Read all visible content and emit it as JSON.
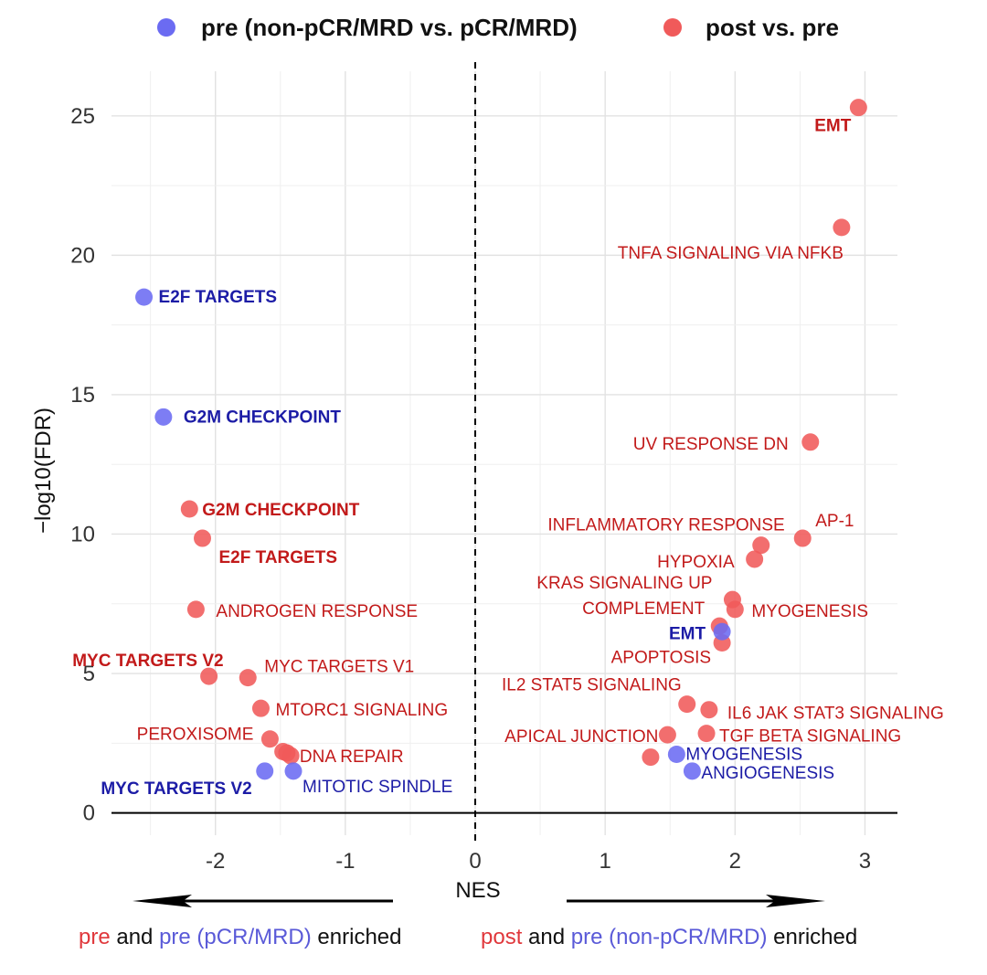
{
  "chart_data": {
    "type": "scatter",
    "xlabel": "NES",
    "ylabel": "−log10(FDR)",
    "xlim": [
      -2.8,
      3.25
    ],
    "ylim": [
      -0.8,
      26.6
    ],
    "x_ticks": [
      -2,
      -1,
      0,
      1,
      2,
      3
    ],
    "y_ticks": [
      0,
      5,
      10,
      15,
      20,
      25
    ],
    "grid": true,
    "legend_position": "top",
    "legend": [
      {
        "name": "pre (non-pCR/MRD vs. pCR/MRD)",
        "color": "#6b6bf2"
      },
      {
        "name": "post vs. pre",
        "color": "#f05a5a"
      }
    ],
    "series": [
      {
        "name": "pre (non-pCR/MRD vs. pCR/MRD)",
        "color": "#6b6bf2",
        "label_color": "#1c1ca6",
        "points": [
          {
            "x": -2.55,
            "y": 18.5,
            "label": "E2F TARGETS",
            "bold": true
          },
          {
            "x": -2.4,
            "y": 14.2,
            "label": "G2M CHECKPOINT",
            "bold": true
          },
          {
            "x": -1.62,
            "y": 1.5,
            "label": "MYC TARGETS V2",
            "bold": true
          },
          {
            "x": -1.4,
            "y": 1.5,
            "label": "MITOTIC SPINDLE",
            "bold": false
          },
          {
            "x": 1.9,
            "y": 6.5,
            "label": "EMT",
            "bold": true
          },
          {
            "x": 1.55,
            "y": 2.1,
            "label": "MYOGENESIS",
            "bold": false
          },
          {
            "x": 1.67,
            "y": 1.5,
            "label": "ANGIOGENESIS",
            "bold": false
          }
        ]
      },
      {
        "name": "post vs. pre",
        "color": "#f05a5a",
        "label_color": "#c21a1a",
        "points": [
          {
            "x": 2.95,
            "y": 25.3,
            "label": "EMT",
            "bold": true
          },
          {
            "x": 2.82,
            "y": 21.0,
            "label": "TNFA SIGNALING VIA NFKB",
            "bold": false
          },
          {
            "x": 2.58,
            "y": 13.3,
            "label": "UV RESPONSE DN",
            "bold": false
          },
          {
            "x": 2.52,
            "y": 9.85,
            "label": "AP-1",
            "bold": false
          },
          {
            "x": 2.2,
            "y": 9.6,
            "label": "INFLAMMATORY RESPONSE",
            "bold": false
          },
          {
            "x": 2.15,
            "y": 9.1,
            "label": "HYPOXIA",
            "bold": false
          },
          {
            "x": 1.98,
            "y": 7.65,
            "label": "KRAS SIGNALING UP",
            "bold": false
          },
          {
            "x": 2.0,
            "y": 7.3,
            "label": "MYOGENESIS",
            "bold": false
          },
          {
            "x": 1.88,
            "y": 6.7,
            "label": "COMPLEMENT",
            "bold": false
          },
          {
            "x": 1.9,
            "y": 6.1,
            "label": "APOPTOSIS",
            "bold": false
          },
          {
            "x": 1.63,
            "y": 3.9,
            "label": "IL2 STAT5 SIGNALING",
            "bold": false
          },
          {
            "x": 1.8,
            "y": 3.7,
            "label": "IL6 JAK STAT3 SIGNALING",
            "bold": false
          },
          {
            "x": 1.78,
            "y": 2.85,
            "label": "TGF BETA SIGNALING",
            "bold": false
          },
          {
            "x": 1.48,
            "y": 2.8,
            "label": "APICAL JUNCTION",
            "bold": false
          },
          {
            "x": 1.35,
            "y": 2.0,
            "label": "",
            "bold": false
          },
          {
            "x": -2.2,
            "y": 10.9,
            "label": "G2M CHECKPOINT",
            "bold": true
          },
          {
            "x": -2.1,
            "y": 9.85,
            "label": "E2F TARGETS",
            "bold": true
          },
          {
            "x": -2.15,
            "y": 7.3,
            "label": "ANDROGEN RESPONSE",
            "bold": false
          },
          {
            "x": -2.05,
            "y": 4.9,
            "label": "MYC TARGETS V2",
            "bold": true
          },
          {
            "x": -1.75,
            "y": 4.85,
            "label": "MYC TARGETS V1",
            "bold": false
          },
          {
            "x": -1.65,
            "y": 3.75,
            "label": "MTORC1 SIGNALING",
            "bold": false
          },
          {
            "x": -1.58,
            "y": 2.65,
            "label": "PEROXISOME",
            "bold": false
          },
          {
            "x": -1.45,
            "y": 2.15,
            "label": "DNA REPAIR",
            "bold": false
          },
          {
            "x": -1.48,
            "y": 2.2,
            "label": "",
            "bold": false
          },
          {
            "x": -1.42,
            "y": 2.05,
            "label": "",
            "bold": false
          }
        ]
      }
    ],
    "footer": {
      "left_part1": "pre",
      "left_part2": " and ",
      "left_part3": "pre (pCR/MRD)",
      "left_part4": " enriched",
      "right_part1": "post",
      "right_part2": " and ",
      "right_part3": "pre (non-pCR/MRD)",
      "right_part4": " enriched"
    }
  }
}
